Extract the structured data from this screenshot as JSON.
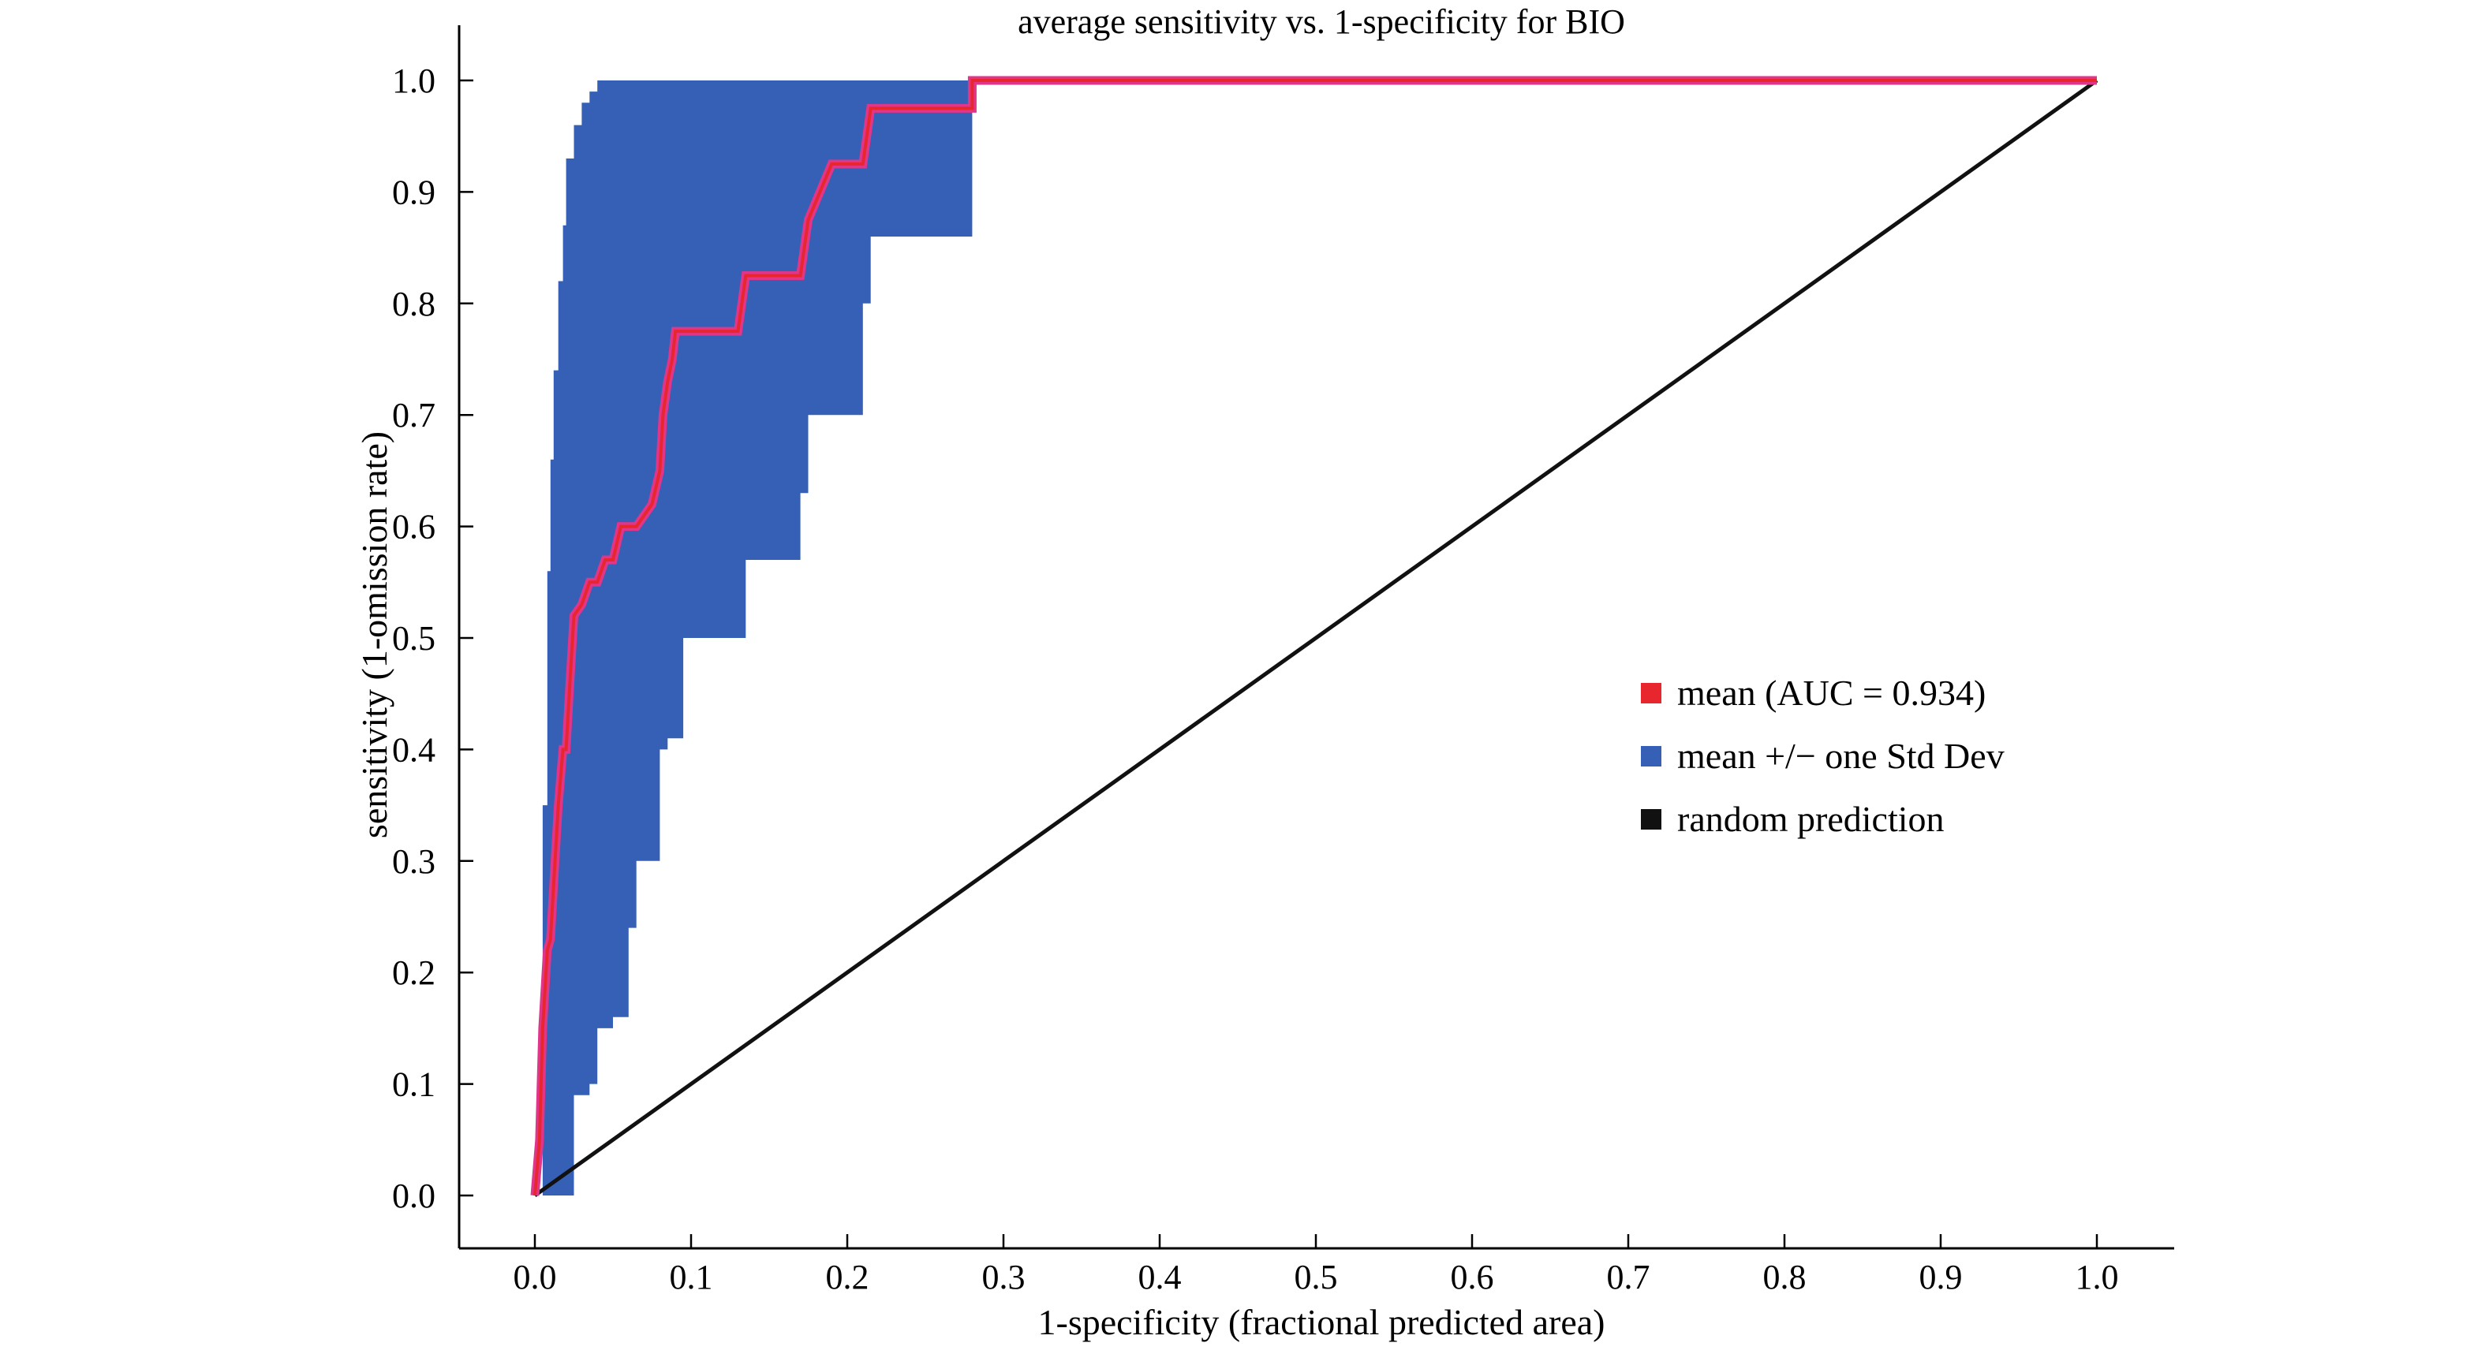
{
  "chart_data": {
    "type": "line",
    "title": "average sensitivity vs. 1-specificity for BIO",
    "xlabel": "1-specificity (fractional predicted area)",
    "ylabel": "sensitivity (1-omission rate)",
    "xlim": [
      0,
      1
    ],
    "ylim": [
      0,
      1
    ],
    "x_ticks": [
      "0.0",
      "0.1",
      "0.2",
      "0.3",
      "0.4",
      "0.5",
      "0.6",
      "0.7",
      "0.8",
      "0.9",
      "1.0"
    ],
    "y_ticks": [
      "0.0",
      "0.1",
      "0.2",
      "0.3",
      "0.4",
      "0.5",
      "0.6",
      "0.7",
      "0.8",
      "0.9",
      "1.0"
    ],
    "grid": false,
    "legend": {
      "placement": "center-right",
      "entries": [
        {
          "label": "mean (AUC = 0.934)",
          "color": "#e8262e"
        },
        {
          "label": "mean +/− one Std Dev",
          "color": "#3660b5"
        },
        {
          "label": "random prediction",
          "color": "#111111"
        }
      ]
    },
    "colors": {
      "mean": "#e8262e",
      "mean_outline": "#e0368a",
      "band": "#3660b5",
      "random": "#111111"
    },
    "series": [
      {
        "name": "mean (AUC = 0.934)",
        "x": [
          0.0,
          0.003,
          0.005,
          0.008,
          0.01,
          0.015,
          0.018,
          0.02,
          0.022,
          0.025,
          0.025,
          0.03,
          0.035,
          0.04,
          0.045,
          0.05,
          0.055,
          0.06,
          0.065,
          0.075,
          0.08,
          0.082,
          0.085,
          0.088,
          0.09,
          0.095,
          0.13,
          0.135,
          0.17,
          0.175,
          0.19,
          0.21,
          0.215,
          0.28,
          0.28,
          1.0
        ],
        "y": [
          0.0,
          0.05,
          0.15,
          0.22,
          0.23,
          0.35,
          0.4,
          0.4,
          0.45,
          0.52,
          0.52,
          0.53,
          0.55,
          0.55,
          0.57,
          0.57,
          0.6,
          0.6,
          0.6,
          0.62,
          0.65,
          0.7,
          0.73,
          0.75,
          0.775,
          0.775,
          0.775,
          0.825,
          0.825,
          0.875,
          0.925,
          0.925,
          0.975,
          0.975,
          1.0,
          1.0
        ]
      },
      {
        "name": "random prediction",
        "x": [
          0.0,
          1.0
        ],
        "y": [
          0.0,
          1.0
        ]
      }
    ],
    "band": {
      "name": "mean +/− one Std Dev",
      "upper_x": [
        0.0,
        0.005,
        0.008,
        0.01,
        0.012,
        0.015,
        0.018,
        0.02,
        0.025,
        0.03,
        0.035,
        0.04,
        0.28
      ],
      "upper_y": [
        0.0,
        0.35,
        0.56,
        0.66,
        0.74,
        0.82,
        0.87,
        0.93,
        0.96,
        0.98,
        0.99,
        1.0,
        1.0
      ],
      "lower_x": [
        0.0,
        0.025,
        0.025,
        0.035,
        0.04,
        0.05,
        0.06,
        0.065,
        0.08,
        0.085,
        0.09,
        0.095,
        0.13,
        0.135,
        0.17,
        0.175,
        0.19,
        0.21,
        0.215,
        0.28
      ],
      "lower_y": [
        0.0,
        0.0,
        0.09,
        0.1,
        0.15,
        0.16,
        0.24,
        0.3,
        0.4,
        0.41,
        0.41,
        0.5,
        0.5,
        0.57,
        0.63,
        0.7,
        0.7,
        0.8,
        0.86,
        0.86
      ]
    }
  }
}
